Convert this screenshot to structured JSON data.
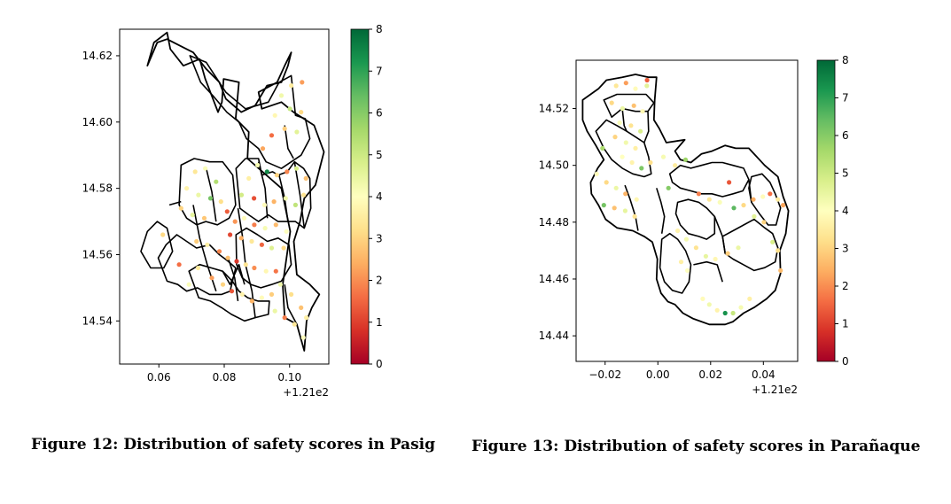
{
  "figures": [
    {
      "caption": "Figure 12: Distribution of safety scores in Pasig",
      "chart_data": {
        "type": "scatter",
        "title": "",
        "xlabel": "",
        "ylabel": "",
        "x_offset_label": "+1.21e2",
        "xlim": [
          0.048,
          0.112
        ],
        "ylim": [
          14.527,
          14.628
        ],
        "xticks": [
          "0.06",
          "0.08",
          "0.10"
        ],
        "xtick_values": [
          0.06,
          0.08,
          0.1
        ],
        "yticks": [
          "14.54",
          "14.56",
          "14.58",
          "14.60",
          "14.62"
        ],
        "ytick_values": [
          14.54,
          14.56,
          14.58,
          14.6,
          14.62
        ],
        "colorbar": {
          "min": 0,
          "max": 8,
          "ticks": [
            "0",
            "1",
            "2",
            "3",
            "4",
            "5",
            "6",
            "7",
            "8"
          ],
          "colormap": "RdYlGn"
        },
        "points": [
          [
            0.1005,
            14.611,
            3.5
          ],
          [
            0.1038,
            14.612,
            2.2
          ],
          [
            0.0975,
            14.608,
            4.3
          ],
          [
            0.1001,
            14.604,
            5.1
          ],
          [
            0.0955,
            14.602,
            3.8
          ],
          [
            0.0985,
            14.598,
            2.9
          ],
          [
            0.1022,
            14.597,
            4.6
          ],
          [
            0.0945,
            14.596,
            1.6
          ],
          [
            0.1035,
            14.603,
            3.1
          ],
          [
            0.0918,
            14.592,
            2.3
          ],
          [
            0.0902,
            14.587,
            4.2
          ],
          [
            0.0931,
            14.585,
            7.4
          ],
          [
            0.0961,
            14.584,
            3.0
          ],
          [
            0.0992,
            14.585,
            1.9
          ],
          [
            0.1021,
            14.586,
            4.8
          ],
          [
            0.105,
            14.583,
            2.7
          ],
          [
            0.0875,
            14.583,
            3.6
          ],
          [
            0.0853,
            14.578,
            4.9
          ],
          [
            0.0891,
            14.577,
            1.2
          ],
          [
            0.0923,
            14.575,
            3.9
          ],
          [
            0.0952,
            14.576,
            2.5
          ],
          [
            0.0988,
            14.577,
            4.3
          ],
          [
            0.1018,
            14.575,
            5.2
          ],
          [
            0.1043,
            14.578,
            3.3
          ],
          [
            0.0711,
            14.585,
            3.4
          ],
          [
            0.0742,
            14.586,
            4.1
          ],
          [
            0.0775,
            14.582,
            5.4
          ],
          [
            0.0685,
            14.58,
            3.7
          ],
          [
            0.0721,
            14.578,
            4.4
          ],
          [
            0.0758,
            14.577,
            6.2
          ],
          [
            0.079,
            14.576,
            3.2
          ],
          [
            0.0668,
            14.574,
            3.0
          ],
          [
            0.0703,
            14.572,
            4.5
          ],
          [
            0.0739,
            14.571,
            2.8
          ],
          [
            0.0809,
            14.573,
            1.4
          ],
          [
            0.0833,
            14.57,
            2.1
          ],
          [
            0.0861,
            14.571,
            3.9
          ],
          [
            0.0892,
            14.569,
            1.8
          ],
          [
            0.0925,
            14.568,
            4.2
          ],
          [
            0.0958,
            14.569,
            2.6
          ],
          [
            0.099,
            14.567,
            4.0
          ],
          [
            0.0818,
            14.566,
            1.1
          ],
          [
            0.0852,
            14.565,
            2.4
          ],
          [
            0.0884,
            14.564,
            3.4
          ],
          [
            0.0915,
            14.563,
            1.5
          ],
          [
            0.0945,
            14.562,
            4.7
          ],
          [
            0.0982,
            14.562,
            3.1
          ],
          [
            0.0715,
            14.564,
            2.9
          ],
          [
            0.0748,
            14.563,
            3.6
          ],
          [
            0.0785,
            14.561,
            1.9
          ],
          [
            0.0811,
            14.559,
            2.7
          ],
          [
            0.0838,
            14.558,
            0.9
          ],
          [
            0.0866,
            14.557,
            3.3
          ],
          [
            0.0892,
            14.556,
            2.0
          ],
          [
            0.0928,
            14.555,
            3.8
          ],
          [
            0.0958,
            14.555,
            1.7
          ],
          [
            0.072,
            14.556,
            3.5
          ],
          [
            0.0762,
            14.553,
            2.2
          ],
          [
            0.0796,
            14.551,
            3.0
          ],
          [
            0.0823,
            14.549,
            1.3
          ],
          [
            0.0855,
            14.548,
            3.7
          ],
          [
            0.0885,
            14.546,
            2.5
          ],
          [
            0.0915,
            14.547,
            3.9
          ],
          [
            0.0945,
            14.548,
            2.9
          ],
          [
            0.0972,
            14.551,
            4.3
          ],
          [
            0.1005,
            14.548,
            3.2
          ],
          [
            0.1035,
            14.544,
            2.7
          ],
          [
            0.1051,
            14.541,
            3.6
          ],
          [
            0.0985,
            14.541,
            1.8
          ],
          [
            0.1015,
            14.539,
            3.4
          ],
          [
            0.0692,
            14.551,
            4.1
          ],
          [
            0.0662,
            14.557,
            1.6
          ],
          [
            0.0955,
            14.543,
            4.4
          ],
          [
            0.1042,
            14.535,
            4.0
          ],
          [
            0.0612,
            14.566,
            3.1
          ]
        ]
      }
    },
    {
      "caption": "Figure 13: Distribution of safety scores in Parañaque",
      "chart_data": {
        "type": "scatter",
        "title": "",
        "xlabel": "",
        "ylabel": "",
        "x_offset_label": "+1.21e2",
        "xlim": [
          -0.031,
          0.053
        ],
        "ylim": [
          14.431,
          14.537
        ],
        "xticks": [
          "−0.02",
          "0.00",
          "0.02",
          "0.04"
        ],
        "xtick_values": [
          -0.02,
          0.0,
          0.02,
          0.04
        ],
        "yticks": [
          "14.44",
          "14.46",
          "14.48",
          "14.50",
          "14.52"
        ],
        "ytick_values": [
          14.44,
          14.46,
          14.48,
          14.5,
          14.52
        ],
        "colorbar": {
          "min": 0,
          "max": 8,
          "ticks": [
            "0",
            "1",
            "2",
            "3",
            "4",
            "5",
            "6",
            "7",
            "8"
          ],
          "colormap": "RdYlGn"
        },
        "points": [
          [
            -0.0158,
            14.528,
            3.4
          ],
          [
            -0.0121,
            14.529,
            2.2
          ],
          [
            -0.0085,
            14.527,
            3.9
          ],
          [
            -0.0042,
            14.528,
            4.6
          ],
          [
            -0.0041,
            14.53,
            1.4
          ],
          [
            -0.0175,
            14.522,
            3.1
          ],
          [
            -0.0134,
            14.52,
            4.4
          ],
          [
            -0.0091,
            14.521,
            2.7
          ],
          [
            -0.0058,
            14.519,
            3.8
          ],
          [
            -0.0145,
            14.515,
            4.1
          ],
          [
            -0.0102,
            14.514,
            3.3
          ],
          [
            -0.0066,
            14.512,
            4.8
          ],
          [
            -0.0162,
            14.51,
            3.0
          ],
          [
            -0.0121,
            14.508,
            4.3
          ],
          [
            -0.0085,
            14.506,
            3.6
          ],
          [
            -0.0135,
            14.503,
            4.0
          ],
          [
            -0.0098,
            14.501,
            3.7
          ],
          [
            -0.0062,
            14.499,
            6.1
          ],
          [
            -0.0028,
            14.501,
            3.2
          ],
          [
            0.0021,
            14.503,
            4.2
          ],
          [
            0.0065,
            14.5,
            3.5
          ],
          [
            0.0105,
            14.502,
            5.7
          ],
          [
            -0.0232,
            14.497,
            3.9
          ],
          [
            -0.0195,
            14.494,
            3.1
          ],
          [
            -0.0158,
            14.492,
            4.4
          ],
          [
            -0.0123,
            14.49,
            2.5
          ],
          [
            -0.0081,
            14.488,
            3.8
          ],
          [
            -0.0205,
            14.486,
            6.2
          ],
          [
            -0.0165,
            14.485,
            2.7
          ],
          [
            -0.0124,
            14.484,
            4.5
          ],
          [
            -0.0088,
            14.482,
            3.3
          ],
          [
            0.0155,
            14.49,
            1.8
          ],
          [
            0.0195,
            14.488,
            3.4
          ],
          [
            0.0235,
            14.487,
            4.1
          ],
          [
            0.0288,
            14.485,
            6.5
          ],
          [
            0.0325,
            14.486,
            3.1
          ],
          [
            0.0362,
            14.488,
            2.4
          ],
          [
            0.0398,
            14.489,
            3.9
          ],
          [
            0.0425,
            14.49,
            1.6
          ],
          [
            0.0455,
            14.488,
            3.5
          ],
          [
            0.0475,
            14.486,
            2.3
          ],
          [
            0.0365,
            14.482,
            4.6
          ],
          [
            0.0402,
            14.48,
            3.0
          ],
          [
            0.0075,
            14.477,
            3.7
          ],
          [
            0.0108,
            14.474,
            4.2
          ],
          [
            0.0145,
            14.471,
            3.3
          ],
          [
            0.0182,
            14.468,
            4.5
          ],
          [
            0.0218,
            14.467,
            3.8
          ],
          [
            0.0265,
            14.469,
            2.9
          ],
          [
            0.0305,
            14.471,
            4.4
          ],
          [
            0.0088,
            14.466,
            3.6
          ],
          [
            0.0112,
            14.463,
            4.0
          ],
          [
            0.0455,
            14.47,
            3.2
          ],
          [
            0.0465,
            14.463,
            2.6
          ],
          [
            0.0195,
            14.451,
            4.3
          ],
          [
            0.0225,
            14.449,
            3.7
          ],
          [
            0.0255,
            14.448,
            7.3
          ],
          [
            0.0285,
            14.448,
            5.1
          ],
          [
            0.0315,
            14.45,
            4.2
          ],
          [
            0.0348,
            14.453,
            3.6
          ],
          [
            0.017,
            14.453,
            3.9
          ],
          [
            -0.021,
            14.506,
            5.5
          ],
          [
            0.004,
            14.492,
            6.0
          ],
          [
            0.027,
            14.494,
            1.3
          ],
          [
            0.0435,
            14.473,
            4.8
          ]
        ]
      }
    }
  ]
}
